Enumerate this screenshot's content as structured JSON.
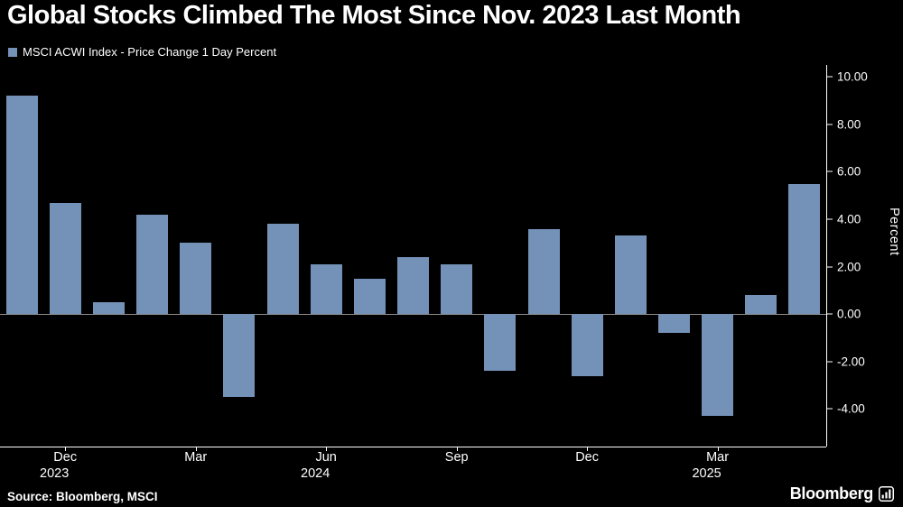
{
  "page": {
    "title": "Global Stocks Climbed The Most Since Nov. 2023 Last Month",
    "source": "Source: Bloomberg, MSCI",
    "brand": "Bloomberg"
  },
  "legend": {
    "label": "MSCI ACWI Index - Price Change 1 Day Percent",
    "color": "#7491b8"
  },
  "chart_data": {
    "type": "bar",
    "title": "Global Stocks Climbed The Most Since Nov. 2023 Last Month",
    "series_name": "MSCI ACWI Index - Price Change 1 Day Percent",
    "categories": [
      "Nov 2023",
      "Dec 2023",
      "Jan 2024",
      "Feb 2024",
      "Mar 2024",
      "Apr 2024",
      "May 2024",
      "Jun 2024",
      "Jul 2024",
      "Aug 2024",
      "Sep 2024",
      "Oct 2024",
      "Nov 2024",
      "Dec 2024",
      "Jan 2025",
      "Feb 2025",
      "Mar 2025",
      "Apr 2025",
      "May 2025"
    ],
    "values": [
      9.2,
      4.7,
      0.5,
      4.2,
      3.0,
      -3.5,
      3.8,
      2.1,
      1.5,
      2.4,
      2.1,
      -2.4,
      3.6,
      -2.6,
      3.3,
      -0.8,
      -4.3,
      0.8,
      5.5
    ],
    "xlabel": "",
    "ylabel": "Percent",
    "ylim": [
      -5.58,
      10.5
    ],
    "yticks": [
      10,
      8,
      6,
      4,
      2,
      0,
      -2,
      -4
    ],
    "ytick_labels": [
      "10.00",
      "8.00",
      "6.00",
      "4.00",
      "2.00",
      "0.00",
      "-2.00",
      "-4.00"
    ],
    "xticks": [
      {
        "index": 1,
        "label": "Dec",
        "year": "2023"
      },
      {
        "index": 4,
        "label": "Mar"
      },
      {
        "index": 7,
        "label": "Jun",
        "year": "2024"
      },
      {
        "index": 10,
        "label": "Sep"
      },
      {
        "index": 13,
        "label": "Dec"
      },
      {
        "index": 16,
        "label": "Mar",
        "year": "2025"
      }
    ],
    "bar_color": "#7491b8",
    "zero_line_color": "#8c8c8c",
    "grid": false,
    "legend_position": "top-left",
    "background": "#000000"
  }
}
